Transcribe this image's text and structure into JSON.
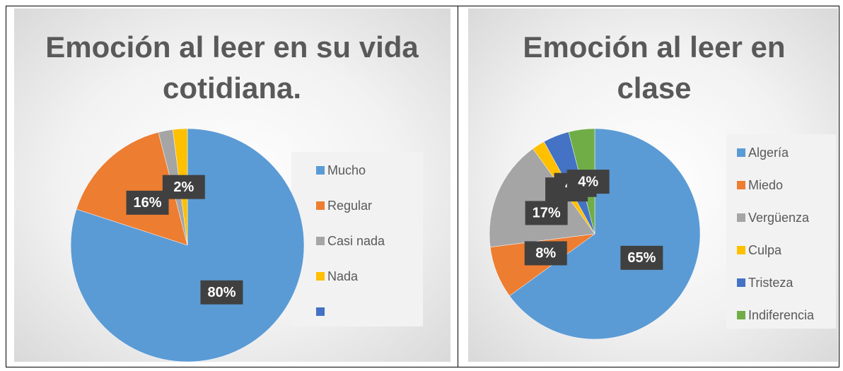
{
  "chart_data": [
    {
      "type": "pie",
      "title": "Emoción al leer en su vida cotidiana.",
      "categories": [
        "Mucho",
        "Regular",
        "Casi nada",
        "Nada",
        null
      ],
      "values": [
        80,
        16,
        2,
        2,
        0
      ],
      "value_labels": [
        "80%",
        "16%",
        null,
        "2%",
        null
      ],
      "colors": [
        "#5b9bd5",
        "#ed7d31",
        "#a5a5a5",
        "#ffc000",
        "#4472c4"
      ]
    },
    {
      "type": "pie",
      "title": "Emoción al leer en clase",
      "categories": [
        "Algería",
        "Miedo",
        "Vergüenza",
        "Culpa",
        "Tristeza",
        "Indiferencia"
      ],
      "values": [
        65,
        8,
        17,
        2,
        4,
        4
      ],
      "value_labels": [
        "65%",
        "8%",
        "17%",
        "2%",
        "4%",
        "4%"
      ],
      "colors": [
        "#5b9bd5",
        "#ed7d31",
        "#a5a5a5",
        "#ffc000",
        "#4472c4",
        "#70ad47"
      ]
    }
  ]
}
